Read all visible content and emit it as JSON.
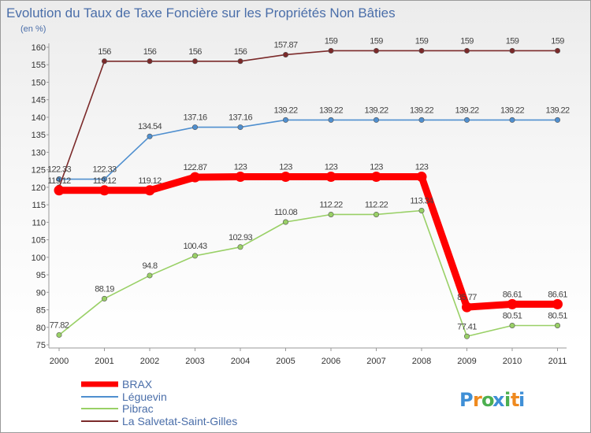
{
  "chart_data": {
    "type": "line",
    "title": "Evolution du Taux de Taxe Foncière sur les Propriétés Non Bâties",
    "unit_label": "(en %)",
    "ylim": [
      75,
      160
    ],
    "ytick_step": 5,
    "categories": [
      "2000",
      "2001",
      "2002",
      "2003",
      "2004",
      "2005",
      "2006",
      "2007",
      "2008",
      "2009",
      "2010",
      "2011"
    ],
    "series": [
      {
        "name": "BRAX",
        "color": "#ff0000",
        "values": [
          119.12,
          119.12,
          119.12,
          122.87,
          123,
          123,
          123,
          123,
          123,
          85.77,
          86.61,
          86.61
        ],
        "labels": [
          "119.12",
          "119.12",
          "119.12",
          "122.87",
          "123",
          "123",
          "123",
          "123",
          "123",
          "85.77",
          "86.61",
          "86.61"
        ]
      },
      {
        "name": "Léguevin",
        "color": "#4f8fcf",
        "values": [
          122.33,
          122.33,
          134.54,
          137.16,
          137.16,
          139.22,
          139.22,
          139.22,
          139.22,
          139.22,
          139.22,
          139.22
        ],
        "labels": [
          "122.33",
          "122.33",
          "134.54",
          "137.16",
          "137.16",
          "139.22",
          "139.22",
          "139.22",
          "139.22",
          "139.22",
          "139.22",
          "139.22"
        ]
      },
      {
        "name": "Pibrac",
        "color": "#99d066",
        "values": [
          77.82,
          88.19,
          94.8,
          100.43,
          102.93,
          110.08,
          112.22,
          112.22,
          113.34,
          77.41,
          80.51,
          80.51
        ],
        "labels": [
          "77.82",
          "88.19",
          "94.8",
          "100.43",
          "102.93",
          "110.08",
          "112.22",
          "112.22",
          "113.34",
          "77.41",
          "80.51",
          "80.51"
        ]
      },
      {
        "name": "La Salvetat-Saint-Gilles",
        "color": "#7b2a2a",
        "values": [
          120,
          156,
          156,
          156,
          156,
          157.87,
          159,
          159,
          159,
          159,
          159,
          159
        ],
        "labels": [
          "",
          "156",
          "156",
          "156",
          "156",
          "157.87",
          "159",
          "159",
          "159",
          "159",
          "159",
          "159"
        ]
      }
    ],
    "grid": false,
    "legend_position": "bottom-left"
  },
  "logo": {
    "letters": [
      "P",
      "r",
      "o",
      "x",
      "i",
      "t",
      "i"
    ],
    "colors": [
      "#3f8fd6",
      "#ef8a1f",
      "#4caf50",
      "#3f8fd6",
      "#4caf50",
      "#ef8a1f",
      "#3f8fd6"
    ]
  }
}
